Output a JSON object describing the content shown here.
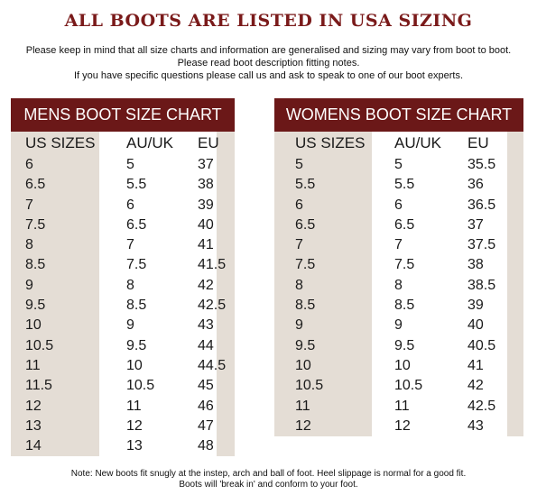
{
  "title": "ALL BOOTS ARE LISTED IN USA SIZING",
  "intro": [
    "Please keep in mind that all size charts and information are generalised and sizing may vary from boot to boot.",
    "Please read boot description fitting notes.",
    "If you have specific questions please call us and ask to speak to one of our boot experts."
  ],
  "mens": {
    "heading": "MENS BOOT SIZE CHART",
    "columns": [
      "US SIZES",
      "AU/UK",
      "EU"
    ],
    "rows": [
      [
        "6",
        "5",
        "37"
      ],
      [
        "6.5",
        "5.5",
        "38"
      ],
      [
        "7",
        "6",
        "39"
      ],
      [
        "7.5",
        "6.5",
        "40"
      ],
      [
        "8",
        "7",
        "41"
      ],
      [
        "8.5",
        "7.5",
        "41.5"
      ],
      [
        "9",
        "8",
        "42"
      ],
      [
        "9.5",
        "8.5",
        "42.5"
      ],
      [
        "10",
        "9",
        "43"
      ],
      [
        "10.5",
        "9.5",
        "44"
      ],
      [
        "11",
        "10",
        "44.5"
      ],
      [
        "11.5",
        "10.5",
        "45"
      ],
      [
        "12",
        "11",
        "46"
      ],
      [
        "13",
        "12",
        "47"
      ],
      [
        "14",
        "13",
        "48"
      ]
    ]
  },
  "womens": {
    "heading": "WOMENS BOOT SIZE CHART",
    "columns": [
      "US SIZES",
      "AU/UK",
      "EU"
    ],
    "rows": [
      [
        "5",
        "5",
        "35.5"
      ],
      [
        "5.5",
        "5.5",
        "36"
      ],
      [
        "6",
        "6",
        "36.5"
      ],
      [
        "6.5",
        "6.5",
        "37"
      ],
      [
        "7",
        "7",
        "37.5"
      ],
      [
        "7.5",
        "7.5",
        "38"
      ],
      [
        "8",
        "8",
        "38.5"
      ],
      [
        "8.5",
        "8.5",
        "39"
      ],
      [
        "9",
        "9",
        "40"
      ],
      [
        "9.5",
        "9.5",
        "40.5"
      ],
      [
        "10",
        "10",
        "41"
      ],
      [
        "10.5",
        "10.5",
        "42"
      ],
      [
        "11",
        "11",
        "42.5"
      ],
      [
        "12",
        "12",
        "43"
      ]
    ]
  },
  "note": [
    "Note: New boots fit snugly at the instep, arch and ball of foot. Heel slippage is normal for a good fit.",
    "Boots will 'break in' and conform to your foot."
  ],
  "colors": {
    "title": "#7a1a1a",
    "header_bg": "#6b1818",
    "shade": "#e4ddd5"
  }
}
